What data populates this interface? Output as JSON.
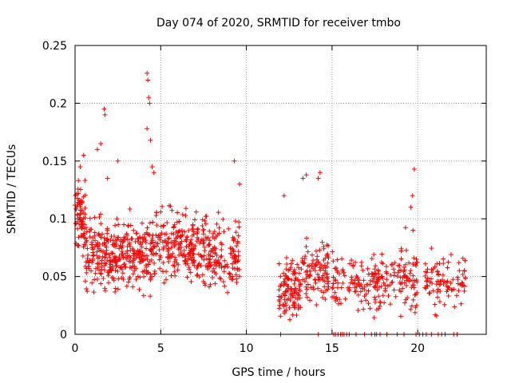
{
  "chart_data": {
    "type": "scatter",
    "title": "Day 074 of 2020, SRMTID for receiver tmbo",
    "xlabel": "GPS time / hours",
    "ylabel": "SRMTID / TECUs",
    "xlim": [
      0,
      24
    ],
    "ylim": [
      0,
      0.25
    ],
    "x_ticks": [
      0,
      5,
      10,
      15,
      20
    ],
    "y_ticks": [
      0,
      0.05,
      0.1,
      0.15,
      0.2,
      0.25
    ],
    "x_tick_labels": [
      "0",
      "5",
      "10",
      "15",
      "20"
    ],
    "y_tick_labels": [
      "0",
      "0.05",
      "0.1",
      "0.15",
      "0.2",
      "0.25"
    ],
    "grid": true,
    "marker": "+",
    "color": "#ff0000",
    "clusters": [
      {
        "x_range": [
          0.0,
          0.6
        ],
        "y_center": 0.1,
        "y_spread": 0.025,
        "count": 70
      },
      {
        "x_range": [
          0.6,
          2.5
        ],
        "y_center": 0.07,
        "y_spread": 0.025,
        "count": 170
      },
      {
        "x_range": [
          2.5,
          4.5
        ],
        "y_center": 0.07,
        "y_spread": 0.025,
        "count": 170
      },
      {
        "x_range": [
          4.5,
          7.0
        ],
        "y_center": 0.075,
        "y_spread": 0.025,
        "count": 190
      },
      {
        "x_range": [
          7.0,
          9.6
        ],
        "y_center": 0.07,
        "y_spread": 0.025,
        "count": 180
      },
      {
        "x_range": [
          11.9,
          13.2
        ],
        "y_center": 0.04,
        "y_spread": 0.02,
        "count": 110
      },
      {
        "x_range": [
          13.2,
          14.8
        ],
        "y_center": 0.055,
        "y_spread": 0.025,
        "count": 100
      },
      {
        "x_range": [
          15.0,
          17.0
        ],
        "y_center": 0.045,
        "y_spread": 0.02,
        "count": 80
      },
      {
        "x_range": [
          17.0,
          19.0
        ],
        "y_center": 0.045,
        "y_spread": 0.02,
        "count": 90
      },
      {
        "x_range": [
          19.0,
          20.0
        ],
        "y_center": 0.05,
        "y_spread": 0.025,
        "count": 60
      },
      {
        "x_range": [
          20.4,
          22.8
        ],
        "y_center": 0.045,
        "y_spread": 0.02,
        "count": 90
      }
    ],
    "highlight_points": [
      {
        "x": 0.3,
        "y": 0.145
      },
      {
        "x": 0.5,
        "y": 0.155
      },
      {
        "x": 1.3,
        "y": 0.16
      },
      {
        "x": 1.5,
        "y": 0.165
      },
      {
        "x": 1.7,
        "y": 0.195
      },
      {
        "x": 1.75,
        "y": 0.19
      },
      {
        "x": 1.9,
        "y": 0.135
      },
      {
        "x": 2.5,
        "y": 0.15
      },
      {
        "x": 4.2,
        "y": 0.226
      },
      {
        "x": 4.25,
        "y": 0.22
      },
      {
        "x": 4.3,
        "y": 0.205
      },
      {
        "x": 4.35,
        "y": 0.2
      },
      {
        "x": 4.2,
        "y": 0.178
      },
      {
        "x": 4.4,
        "y": 0.168
      },
      {
        "x": 4.5,
        "y": 0.145
      },
      {
        "x": 4.6,
        "y": 0.14
      },
      {
        "x": 9.3,
        "y": 0.15
      },
      {
        "x": 9.6,
        "y": 0.13
      },
      {
        "x": 12.2,
        "y": 0.12
      },
      {
        "x": 13.3,
        "y": 0.135
      },
      {
        "x": 13.5,
        "y": 0.138
      },
      {
        "x": 14.3,
        "y": 0.14
      },
      {
        "x": 14.2,
        "y": 0.135
      },
      {
        "x": 19.8,
        "y": 0.143
      },
      {
        "x": 19.7,
        "y": 0.12
      },
      {
        "x": 19.6,
        "y": 0.11
      }
    ],
    "zero_points_x": [
      12.0,
      14.2,
      15.1,
      15.2,
      15.35,
      15.5,
      15.6,
      15.7,
      15.85,
      16.0,
      16.4,
      16.9,
      17.3,
      17.5,
      17.6,
      17.8,
      18.2,
      18.8,
      19.2,
      19.9,
      20.1,
      20.3,
      20.5,
      20.8,
      21.2,
      21.4,
      21.6,
      22.1,
      22.3
    ]
  }
}
